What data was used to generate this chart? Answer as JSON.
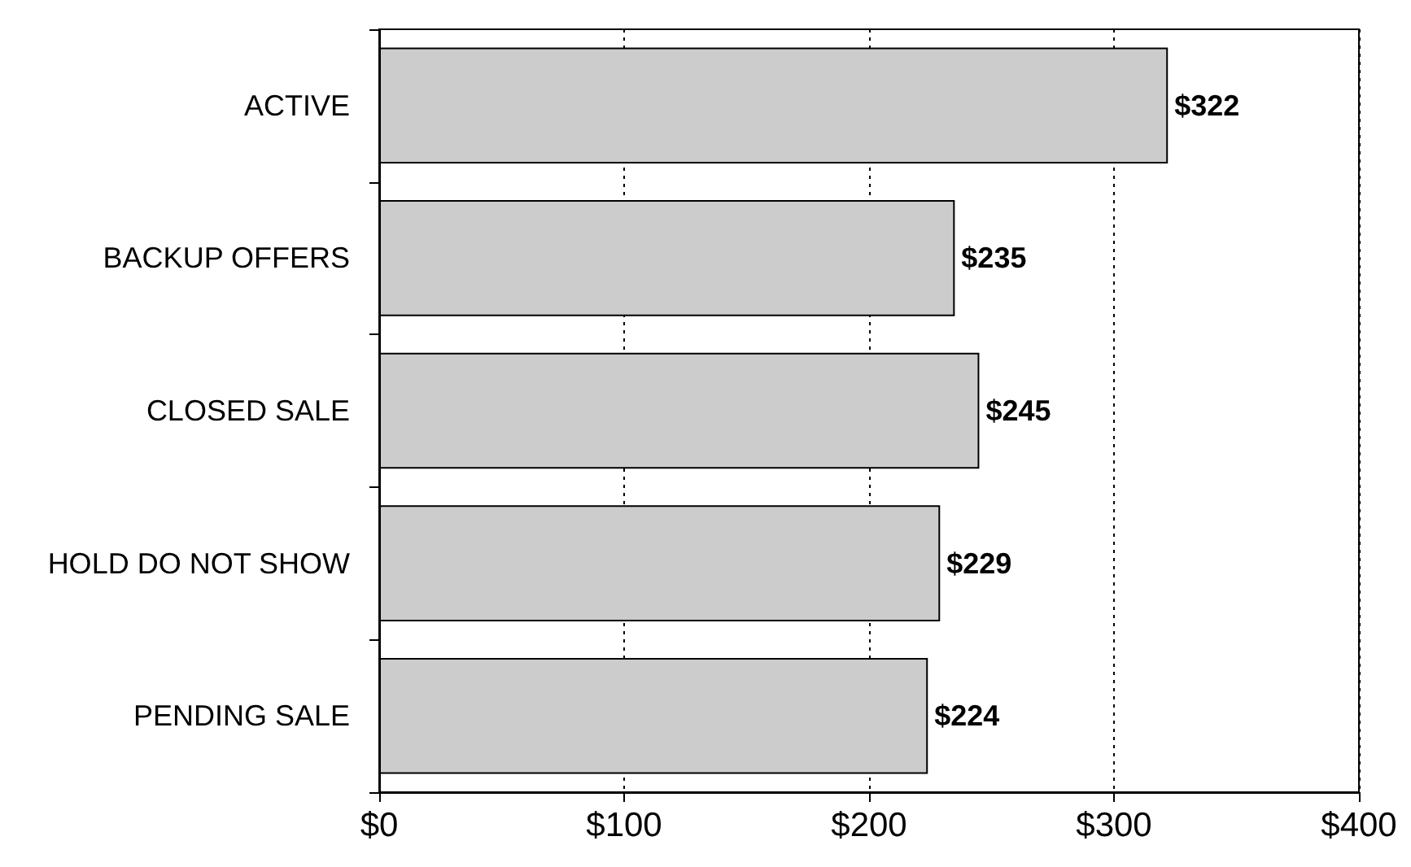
{
  "chart_data": {
    "type": "bar",
    "orientation": "horizontal",
    "categories": [
      "ACTIVE",
      "BACKUP OFFERS",
      "CLOSED SALE",
      "HOLD DO NOT SHOW",
      "PENDING SALE"
    ],
    "values": [
      322,
      235,
      245,
      229,
      224
    ],
    "value_labels": [
      "$322",
      "$235",
      "$245",
      "$229",
      "$224"
    ],
    "color": "#cccccc",
    "xlim": [
      0,
      400
    ],
    "xticks": [
      {
        "value": 0,
        "label": "$0"
      },
      {
        "value": 100,
        "label": "$100"
      },
      {
        "value": 200,
        "label": "$200"
      },
      {
        "value": 300,
        "label": "$300"
      },
      {
        "value": 400,
        "label": "$400"
      }
    ],
    "grid": "x"
  }
}
